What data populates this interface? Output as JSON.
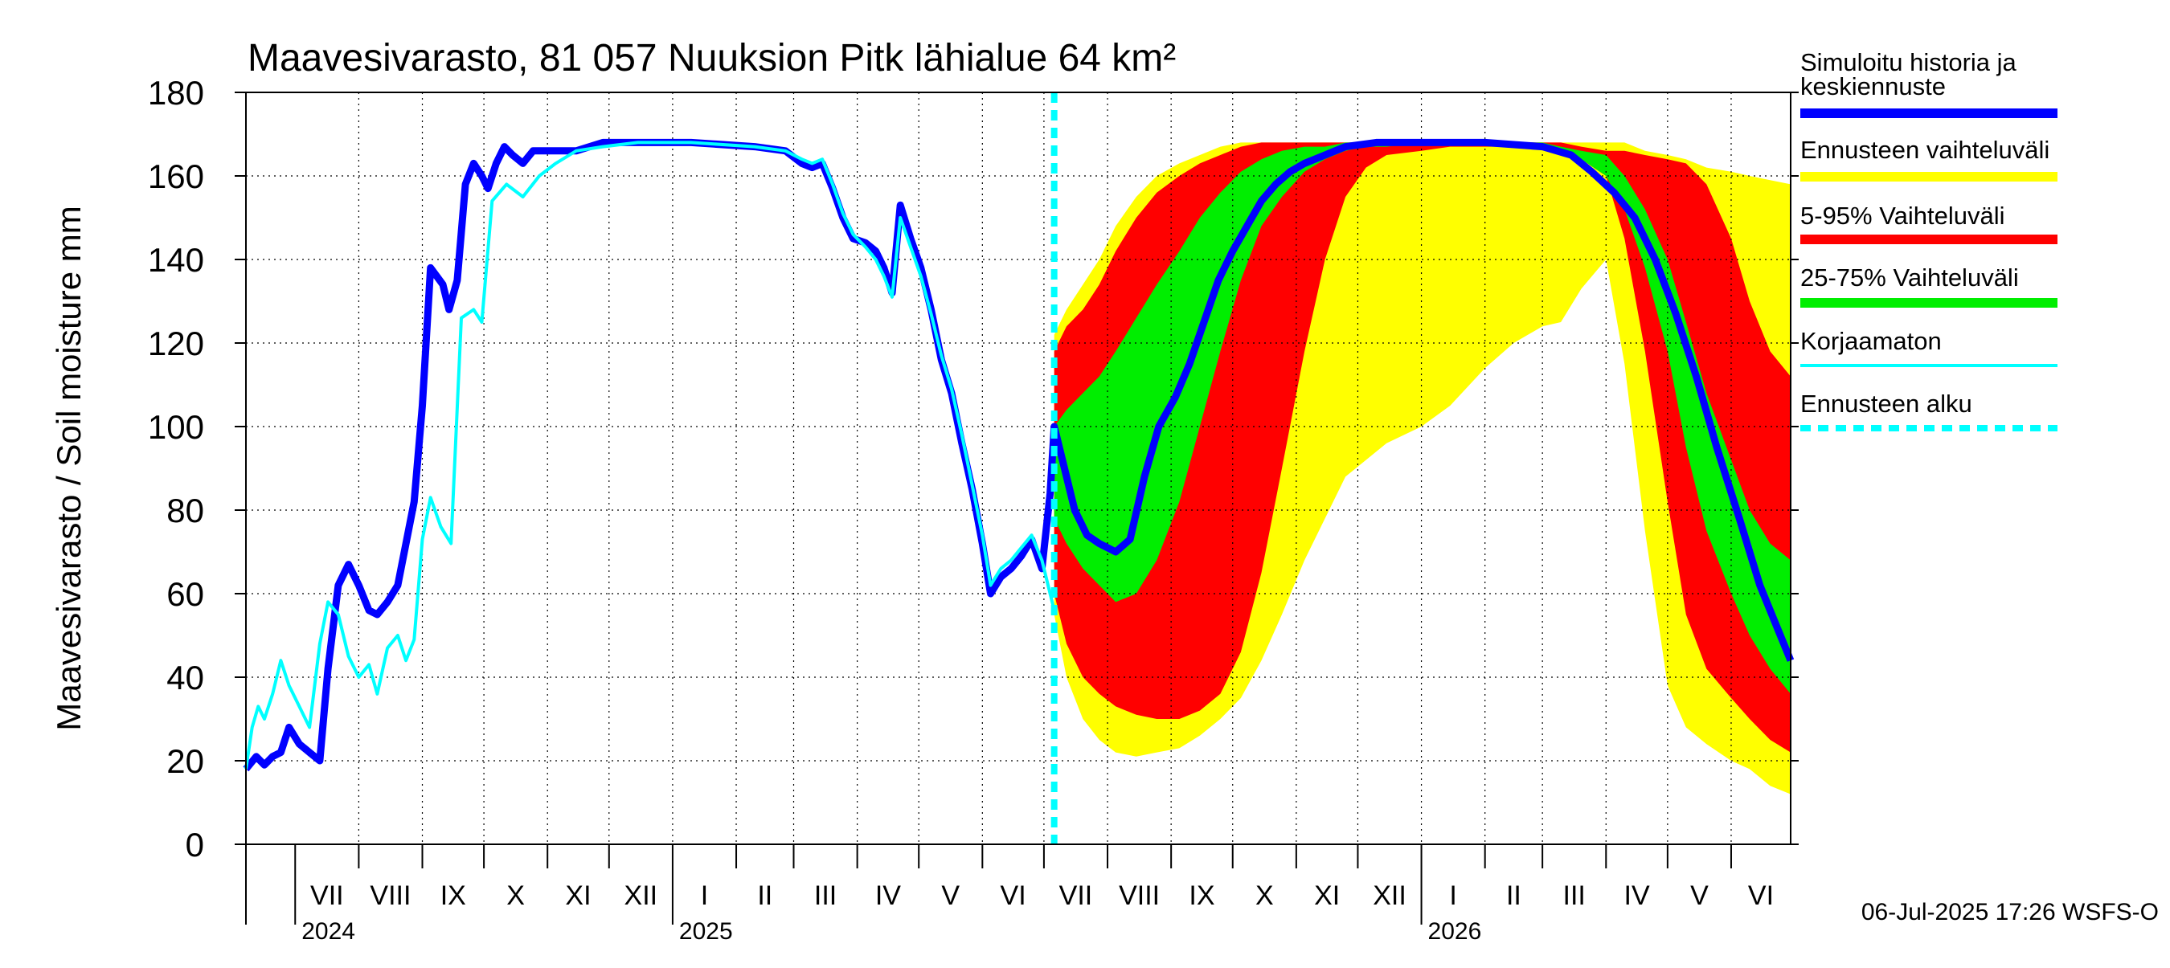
{
  "chart_data": {
    "type": "area",
    "title": "Maavesivarasto, 81 057 Nuuksion Pitk lähialue 64 km²",
    "ylabel": "Maavesivarasto / Soil moisture   mm",
    "xlabel": "",
    "ylim": [
      0,
      180
    ],
    "y_ticks": [
      0,
      20,
      40,
      60,
      80,
      100,
      120,
      140,
      160,
      180
    ],
    "xlim": [
      "2024-06-07",
      "2026-06-30"
    ],
    "forecast_start": "2025-07-06",
    "grid": true,
    "months": [
      {
        "label": "VII",
        "start": "2024-07-01"
      },
      {
        "label": "VIII",
        "start": "2024-08-01"
      },
      {
        "label": "IX",
        "start": "2024-09-01"
      },
      {
        "label": "X",
        "start": "2024-10-01"
      },
      {
        "label": "XI",
        "start": "2024-11-01"
      },
      {
        "label": "XII",
        "start": "2024-12-01"
      },
      {
        "label": "I",
        "start": "2025-01-01"
      },
      {
        "label": "II",
        "start": "2025-02-01"
      },
      {
        "label": "III",
        "start": "2025-03-01"
      },
      {
        "label": "IV",
        "start": "2025-04-01"
      },
      {
        "label": "V",
        "start": "2025-05-01"
      },
      {
        "label": "VI",
        "start": "2025-06-01"
      },
      {
        "label": "VII",
        "start": "2025-07-01"
      },
      {
        "label": "VIII",
        "start": "2025-08-01"
      },
      {
        "label": "IX",
        "start": "2025-09-01"
      },
      {
        "label": "X",
        "start": "2025-10-01"
      },
      {
        "label": "XI",
        "start": "2025-11-01"
      },
      {
        "label": "XII",
        "start": "2025-12-01"
      },
      {
        "label": "I",
        "start": "2026-01-01"
      },
      {
        "label": "II",
        "start": "2026-02-01"
      },
      {
        "label": "III",
        "start": "2026-03-01"
      },
      {
        "label": "IV",
        "start": "2026-04-01"
      },
      {
        "label": "V",
        "start": "2026-05-01"
      },
      {
        "label": "VI",
        "start": "2026-06-01"
      }
    ],
    "years": [
      {
        "label": "2024",
        "at": "2024-07-01"
      },
      {
        "label": "2025",
        "at": "2025-01-01"
      },
      {
        "label": "2026",
        "at": "2026-01-01"
      }
    ],
    "legend": [
      {
        "label": "Simuloitu historia ja keskiennuste",
        "color": "#0000ff",
        "style": "line"
      },
      {
        "label": "Ennusteen vaihteluväli",
        "color": "#ffff00",
        "style": "line"
      },
      {
        "label": "5-95% Vaihteluväli",
        "color": "#ff0000",
        "style": "line"
      },
      {
        "label": "25-75% Vaihteluväli",
        "color": "#00ee00",
        "style": "line"
      },
      {
        "label": "Korjaamaton",
        "color": "#00ffff",
        "style": "line"
      },
      {
        "label": "Ennusteen alku",
        "color": "#00ffff",
        "style": "dashed"
      }
    ],
    "series": [
      {
        "name": "Simuloitu historia ja keskiennuste",
        "color": "#0000ff",
        "x": [
          "2024-06-07",
          "2024-06-12",
          "2024-06-16",
          "2024-06-20",
          "2024-06-24",
          "2024-06-28",
          "2024-07-03",
          "2024-07-08",
          "2024-07-13",
          "2024-07-17",
          "2024-07-22",
          "2024-07-27",
          "2024-08-01",
          "2024-08-06",
          "2024-08-10",
          "2024-08-15",
          "2024-08-20",
          "2024-08-24",
          "2024-08-28",
          "2024-09-01",
          "2024-09-05",
          "2024-09-08",
          "2024-09-11",
          "2024-09-14",
          "2024-09-18",
          "2024-09-22",
          "2024-09-26",
          "2024-09-30",
          "2024-10-03",
          "2024-10-07",
          "2024-10-11",
          "2024-10-15",
          "2024-10-20",
          "2024-10-25",
          "2024-10-30",
          "2024-11-05",
          "2024-11-15",
          "2024-11-28",
          "2024-12-15",
          "2025-01-10",
          "2025-02-10",
          "2025-02-25",
          "2025-03-05",
          "2025-03-10",
          "2025-03-15",
          "2025-03-20",
          "2025-03-25",
          "2025-03-30",
          "2025-04-05",
          "2025-04-10",
          "2025-04-14",
          "2025-04-18",
          "2025-04-22",
          "2025-04-27",
          "2025-05-02",
          "2025-05-07",
          "2025-05-12",
          "2025-05-17",
          "2025-05-22",
          "2025-05-27",
          "2025-06-01",
          "2025-06-05",
          "2025-06-10",
          "2025-06-15",
          "2025-06-20",
          "2025-06-25",
          "2025-06-30",
          "2025-07-04",
          "2025-07-06",
          "2025-07-10",
          "2025-07-16",
          "2025-07-22",
          "2025-07-28",
          "2025-08-05",
          "2025-08-12",
          "2025-08-19",
          "2025-08-26",
          "2025-09-03",
          "2025-09-10",
          "2025-09-17",
          "2025-09-24",
          "2025-10-01",
          "2025-10-08",
          "2025-10-15",
          "2025-10-22",
          "2025-10-29",
          "2025-11-05",
          "2025-11-15",
          "2025-11-25",
          "2025-12-10",
          "2026-01-01",
          "2026-02-01",
          "2026-03-01",
          "2026-03-15",
          "2026-03-25",
          "2026-04-05",
          "2026-04-15",
          "2026-04-25",
          "2026-05-05",
          "2026-05-15",
          "2026-05-25",
          "2026-06-05",
          "2026-06-15",
          "2026-06-25",
          "2026-06-30"
        ],
        "y": [
          18,
          21,
          19,
          21,
          22,
          28,
          24,
          22,
          20,
          42,
          62,
          67,
          62,
          56,
          55,
          58,
          62,
          72,
          82,
          105,
          138,
          136,
          134,
          128,
          135,
          158,
          163,
          160,
          157,
          163,
          167,
          165,
          163,
          166,
          166,
          166,
          166,
          168,
          168,
          168,
          167,
          166,
          163,
          162,
          163,
          157,
          150,
          145,
          144,
          142,
          138,
          132,
          153,
          145,
          138,
          128,
          116,
          108,
          96,
          85,
          72,
          60,
          64,
          66,
          69,
          73,
          66,
          84,
          100,
          92,
          80,
          74,
          72,
          70,
          73,
          88,
          100,
          107,
          115,
          125,
          135,
          142,
          148,
          154,
          158,
          161,
          163,
          165,
          167,
          168,
          168,
          168,
          167,
          165,
          161,
          156,
          150,
          140,
          127,
          112,
          95,
          78,
          62,
          50,
          44
        ]
      },
      {
        "name": "Korjaamaton",
        "color": "#00ffff",
        "x": [
          "2024-06-07",
          "2024-06-10",
          "2024-06-13",
          "2024-06-16",
          "2024-06-20",
          "2024-06-24",
          "2024-06-28",
          "2024-07-03",
          "2024-07-08",
          "2024-07-13",
          "2024-07-17",
          "2024-07-22",
          "2024-07-27",
          "2024-08-01",
          "2024-08-06",
          "2024-08-10",
          "2024-08-15",
          "2024-08-20",
          "2024-08-24",
          "2024-08-28",
          "2024-09-01",
          "2024-09-05",
          "2024-09-10",
          "2024-09-15",
          "2024-09-20",
          "2024-09-26",
          "2024-09-30",
          "2024-10-05",
          "2024-10-12",
          "2024-10-20",
          "2024-10-28",
          "2024-11-05",
          "2024-11-15",
          "2024-11-28",
          "2024-12-15",
          "2025-01-10",
          "2025-02-10",
          "2025-02-25",
          "2025-03-05",
          "2025-03-10",
          "2025-03-15",
          "2025-03-20",
          "2025-03-25",
          "2025-03-30",
          "2025-04-05",
          "2025-04-10",
          "2025-04-14",
          "2025-04-18",
          "2025-04-22",
          "2025-04-27",
          "2025-05-02",
          "2025-05-07",
          "2025-05-12",
          "2025-05-17",
          "2025-05-22",
          "2025-05-27",
          "2025-06-01",
          "2025-06-05",
          "2025-06-10",
          "2025-06-15",
          "2025-06-20",
          "2025-06-25",
          "2025-06-30",
          "2025-07-04",
          "2025-07-06"
        ],
        "y": [
          18,
          28,
          33,
          30,
          36,
          44,
          38,
          33,
          28,
          48,
          58,
          55,
          45,
          40,
          43,
          36,
          47,
          50,
          44,
          49,
          73,
          83,
          76,
          72,
          126,
          128,
          125,
          154,
          158,
          155,
          160,
          163,
          166,
          167,
          168,
          168,
          167,
          166,
          164,
          163,
          164,
          158,
          151,
          146,
          143,
          140,
          136,
          131,
          150,
          143,
          136,
          127,
          117,
          109,
          98,
          86,
          74,
          62,
          66,
          68,
          71,
          74,
          68,
          60,
          56
        ]
      }
    ],
    "bands": [
      {
        "name": "Ennusteen vaihteluväli",
        "color": "#ffff00",
        "x": [
          "2025-07-06",
          "2025-07-12",
          "2025-07-20",
          "2025-07-28",
          "2025-08-05",
          "2025-08-15",
          "2025-08-25",
          "2025-09-05",
          "2025-09-15",
          "2025-09-25",
          "2025-10-05",
          "2025-10-15",
          "2025-10-25",
          "2025-11-05",
          "2025-11-15",
          "2025-11-25",
          "2025-12-05",
          "2025-12-15",
          "2026-01-01",
          "2026-01-15",
          "2026-02-01",
          "2026-02-15",
          "2026-03-01",
          "2026-03-10",
          "2026-03-20",
          "2026-04-01",
          "2026-04-10",
          "2026-04-20",
          "2026-05-01",
          "2026-05-10",
          "2026-05-20",
          "2026-06-01",
          "2026-06-10",
          "2026-06-20",
          "2026-06-30"
        ],
        "lower": [
          55,
          40,
          30,
          25,
          22,
          21,
          22,
          23,
          26,
          30,
          35,
          44,
          55,
          68,
          78,
          88,
          92,
          96,
          100,
          105,
          114,
          120,
          124,
          125,
          133,
          140,
          115,
          75,
          38,
          28,
          24,
          20,
          18,
          14,
          12
        ],
        "upper": [
          122,
          128,
          134,
          140,
          148,
          155,
          160,
          163,
          165,
          167,
          168,
          168,
          168,
          168,
          168,
          168,
          168,
          168,
          168,
          168,
          168,
          168,
          168,
          168,
          168,
          168,
          168,
          166,
          165,
          164,
          162,
          161,
          160,
          159,
          158
        ]
      },
      {
        "name": "5-95% Vaihteluväli",
        "color": "#ff0000",
        "x": [
          "2025-07-06",
          "2025-07-12",
          "2025-07-20",
          "2025-07-28",
          "2025-08-05",
          "2025-08-15",
          "2025-08-25",
          "2025-09-05",
          "2025-09-15",
          "2025-09-25",
          "2025-10-05",
          "2025-10-15",
          "2025-10-25",
          "2025-11-05",
          "2025-11-15",
          "2025-11-25",
          "2025-12-05",
          "2025-12-15",
          "2026-01-01",
          "2026-01-15",
          "2026-02-01",
          "2026-02-15",
          "2026-03-01",
          "2026-03-10",
          "2026-03-20",
          "2026-04-01",
          "2026-04-10",
          "2026-04-20",
          "2026-05-01",
          "2026-05-10",
          "2026-05-20",
          "2026-06-01",
          "2026-06-10",
          "2026-06-20",
          "2026-06-30"
        ],
        "lower": [
          60,
          48,
          40,
          36,
          33,
          31,
          30,
          30,
          32,
          36,
          46,
          65,
          90,
          118,
          140,
          155,
          162,
          165,
          166,
          167,
          167,
          167,
          167,
          166,
          164,
          160,
          145,
          118,
          82,
          55,
          42,
          35,
          30,
          25,
          22
        ],
        "upper": [
          118,
          124,
          128,
          134,
          142,
          150,
          156,
          160,
          163,
          165,
          167,
          168,
          168,
          168,
          168,
          168,
          168,
          168,
          168,
          168,
          168,
          168,
          168,
          168,
          167,
          166,
          166,
          165,
          164,
          163,
          158,
          145,
          130,
          118,
          112
        ]
      },
      {
        "name": "25-75% Vaihteluväli",
        "color": "#00ee00",
        "x": [
          "2025-07-06",
          "2025-07-12",
          "2025-07-20",
          "2025-07-28",
          "2025-08-05",
          "2025-08-15",
          "2025-08-25",
          "2025-09-05",
          "2025-09-15",
          "2025-09-25",
          "2025-10-05",
          "2025-10-15",
          "2025-10-25",
          "2025-11-05",
          "2025-11-15",
          "2025-11-25",
          "2025-12-05",
          "2025-12-15",
          "2026-01-01",
          "2026-01-15",
          "2026-02-01",
          "2026-02-15",
          "2026-03-01",
          "2026-03-10",
          "2026-03-20",
          "2026-04-01",
          "2026-04-10",
          "2026-04-20",
          "2026-05-01",
          "2026-05-10",
          "2026-05-20",
          "2026-06-01",
          "2026-06-10",
          "2026-06-20",
          "2026-06-30"
        ],
        "lower": [
          78,
          72,
          66,
          62,
          58,
          60,
          68,
          82,
          100,
          118,
          135,
          148,
          155,
          161,
          164,
          166,
          167,
          167,
          168,
          168,
          168,
          168,
          167,
          166,
          164,
          160,
          152,
          138,
          118,
          95,
          75,
          60,
          50,
          42,
          36
        ],
        "upper": [
          100,
          104,
          108,
          112,
          118,
          126,
          134,
          142,
          150,
          156,
          161,
          164,
          166,
          167,
          167,
          168,
          168,
          168,
          168,
          168,
          168,
          168,
          168,
          167,
          166,
          165,
          160,
          152,
          140,
          125,
          108,
          92,
          80,
          72,
          68
        ]
      }
    ]
  },
  "footer": {
    "timestamp": "06-Jul-2025 17:26 WSFS-O"
  }
}
